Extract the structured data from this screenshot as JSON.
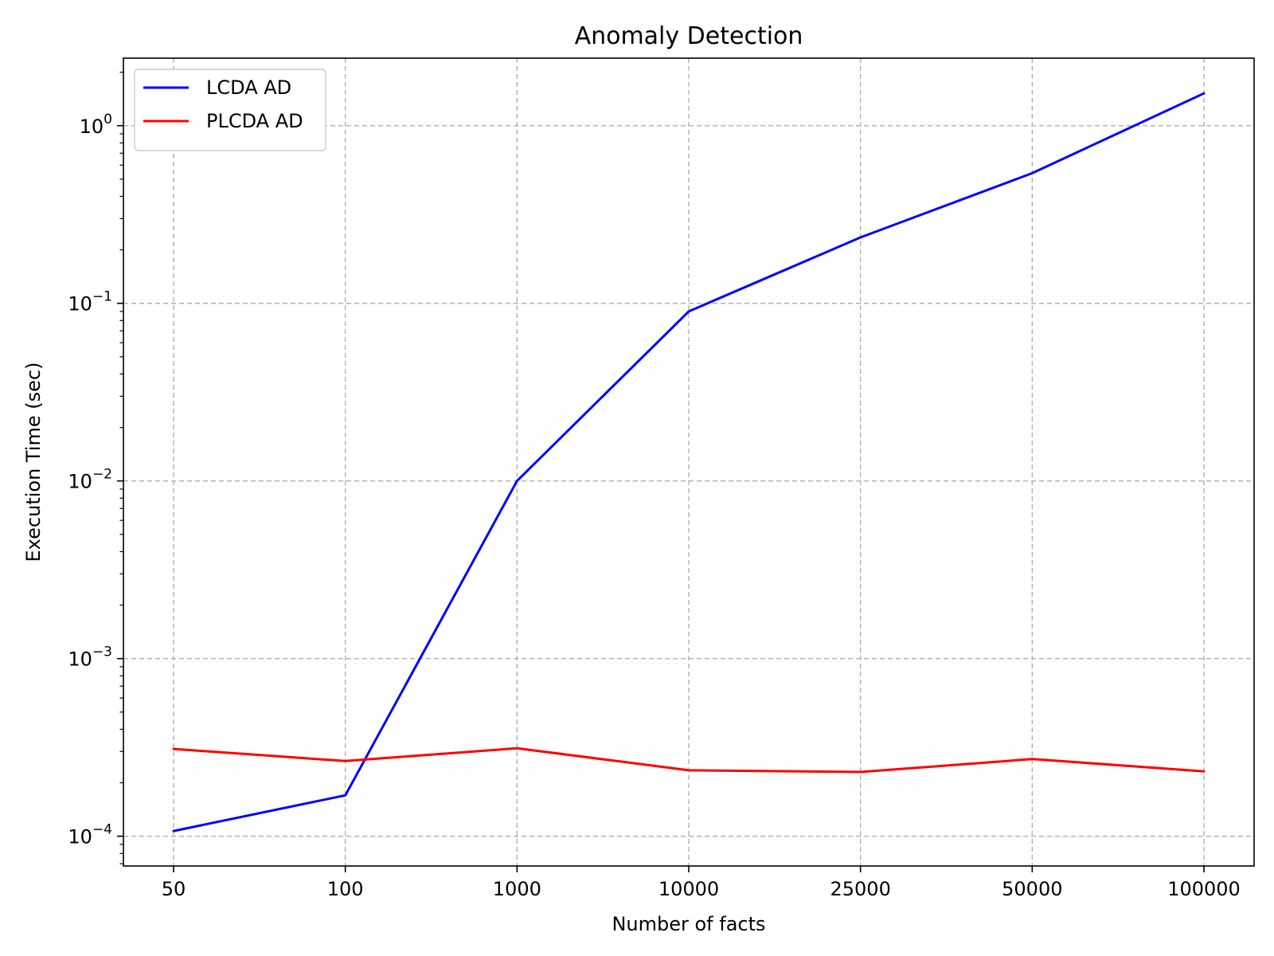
{
  "chart_data": {
    "type": "line",
    "title": "Anomaly Detection",
    "xlabel": "Number of facts",
    "ylabel": "Execution Time (sec)",
    "categories": [
      "50",
      "100",
      "1000",
      "10000",
      "25000",
      "50000",
      "100000"
    ],
    "y_scale": "log",
    "ylim": [
      6.8e-05,
      2.4
    ],
    "y_ticks": [
      {
        "value": 1,
        "base": "10",
        "exp": "0"
      },
      {
        "value": 0.1,
        "base": "10",
        "exp": "−1"
      },
      {
        "value": 0.01,
        "base": "10",
        "exp": "−2"
      },
      {
        "value": 0.001,
        "base": "10",
        "exp": "−3"
      },
      {
        "value": 0.0001,
        "base": "10",
        "exp": "−4"
      }
    ],
    "grid": true,
    "legend_position": "top-left",
    "series": [
      {
        "name": "LCDA AD",
        "color": "#0000ff",
        "values": [
          0.000107,
          0.00017,
          0.01,
          0.09,
          0.235,
          0.54,
          1.52
        ]
      },
      {
        "name": "PLCDA AD",
        "color": "#ff0000",
        "values": [
          0.00031,
          0.000265,
          0.000313,
          0.000235,
          0.00023,
          0.000272,
          0.000232
        ]
      }
    ]
  }
}
